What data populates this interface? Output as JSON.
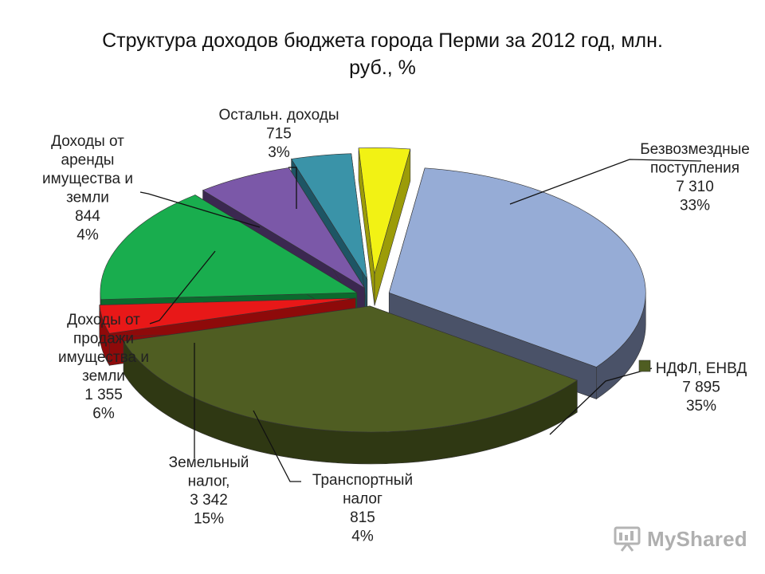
{
  "slide": {
    "title_line1": "Структура доходов бюджета города Перми за 2012 год, млн.",
    "title_line2": "руб., %"
  },
  "watermark": {
    "text": "MyShared",
    "icon": "presentation-board-icon"
  },
  "chart_data": {
    "type": "pie",
    "title": "Структура доходов бюджета города Перми за 2012 год, млн. руб., %",
    "three_d": true,
    "exploded": true,
    "legend": "none",
    "slices": [
      {
        "lines": [
          "Безвозмездные",
          "поступления"
        ],
        "value_label": "7 310",
        "pct_label": "33%",
        "value": 7310,
        "pct": 33,
        "color": "#96acd6",
        "side_color": "#4a5268"
      },
      {
        "lines": [
          "НДФЛ, ЕНВД"
        ],
        "value_label": "7 895",
        "pct_label": "35%",
        "value": 7895,
        "pct": 35,
        "color": "#4f5d22",
        "side_color": "#2f3813"
      },
      {
        "lines": [
          "Транспортный",
          "налог"
        ],
        "value_label": "815",
        "pct_label": "4%",
        "value": 815,
        "pct": 4,
        "color": "#e81818",
        "side_color": "#8e0a0a"
      },
      {
        "lines": [
          "Земельный",
          "налог,"
        ],
        "value_label": "3 342",
        "pct_label": "15%",
        "value": 3342,
        "pct": 15,
        "color": "#19ad4e",
        "side_color": "#0b6a2d"
      },
      {
        "lines": [
          "Доходы от",
          "продажи",
          "имущества  и",
          "земли"
        ],
        "value_label": "1 355",
        "pct_label": "6%",
        "value": 1355,
        "pct": 6,
        "color": "#7b58a8",
        "side_color": "#3b2850"
      },
      {
        "lines": [
          "Доходы от",
          "аренды",
          "имущества и",
          "земли"
        ],
        "value_label": "844",
        "pct_label": "4%",
        "value": 844,
        "pct": 4,
        "color": "#3a93a8",
        "side_color": "#1e5564"
      },
      {
        "lines": [
          "Остальн. доходы"
        ],
        "value_label": "715",
        "pct_label": "3%",
        "value": 715,
        "pct": 3,
        "color": "#f2f214",
        "side_color": "#9c9c08"
      }
    ]
  }
}
